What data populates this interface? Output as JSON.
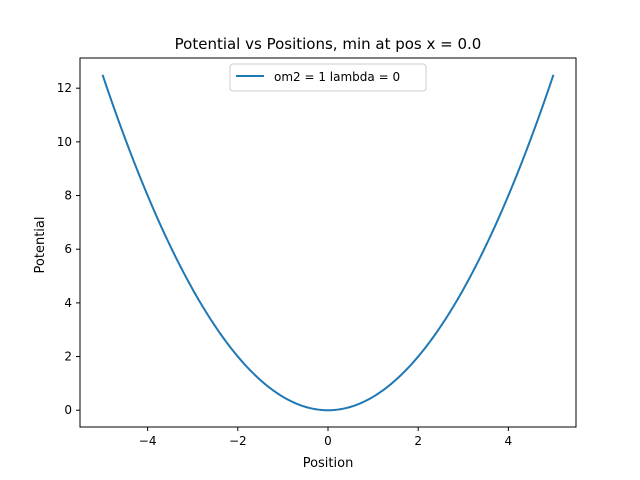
{
  "chart_data": {
    "type": "line",
    "title": "Potential vs Positions, min at pos x = 0.0",
    "xlabel": "Position",
    "ylabel": "Potential",
    "xlim": [
      -5.5,
      5.5
    ],
    "ylim": [
      -0.625,
      13.125
    ],
    "xticks": [
      -4,
      -2,
      0,
      2,
      4
    ],
    "xtick_labels": [
      "−4",
      "−2",
      "0",
      "2",
      "4"
    ],
    "yticks": [
      0,
      2,
      4,
      6,
      8,
      10,
      12
    ],
    "ytick_labels": [
      "0",
      "2",
      "4",
      "6",
      "8",
      "10",
      "12"
    ],
    "grid": false,
    "legend_position": "upper center",
    "series": [
      {
        "name": "om2 = 1 lambda = 0",
        "color": "#1f77b4",
        "x": [
          -5.0,
          -4.5,
          -4.0,
          -3.5,
          -3.0,
          -2.5,
          -2.0,
          -1.5,
          -1.0,
          -0.5,
          0.0,
          0.5,
          1.0,
          1.5,
          2.0,
          2.5,
          3.0,
          3.5,
          4.0,
          4.5,
          5.0
        ],
        "y": [
          12.5,
          10.125,
          8.0,
          6.125,
          4.5,
          3.125,
          2.0,
          1.125,
          0.5,
          0.125,
          0.0,
          0.125,
          0.5,
          1.125,
          2.0,
          3.125,
          4.5,
          6.125,
          8.0,
          10.125,
          12.5
        ]
      }
    ]
  }
}
